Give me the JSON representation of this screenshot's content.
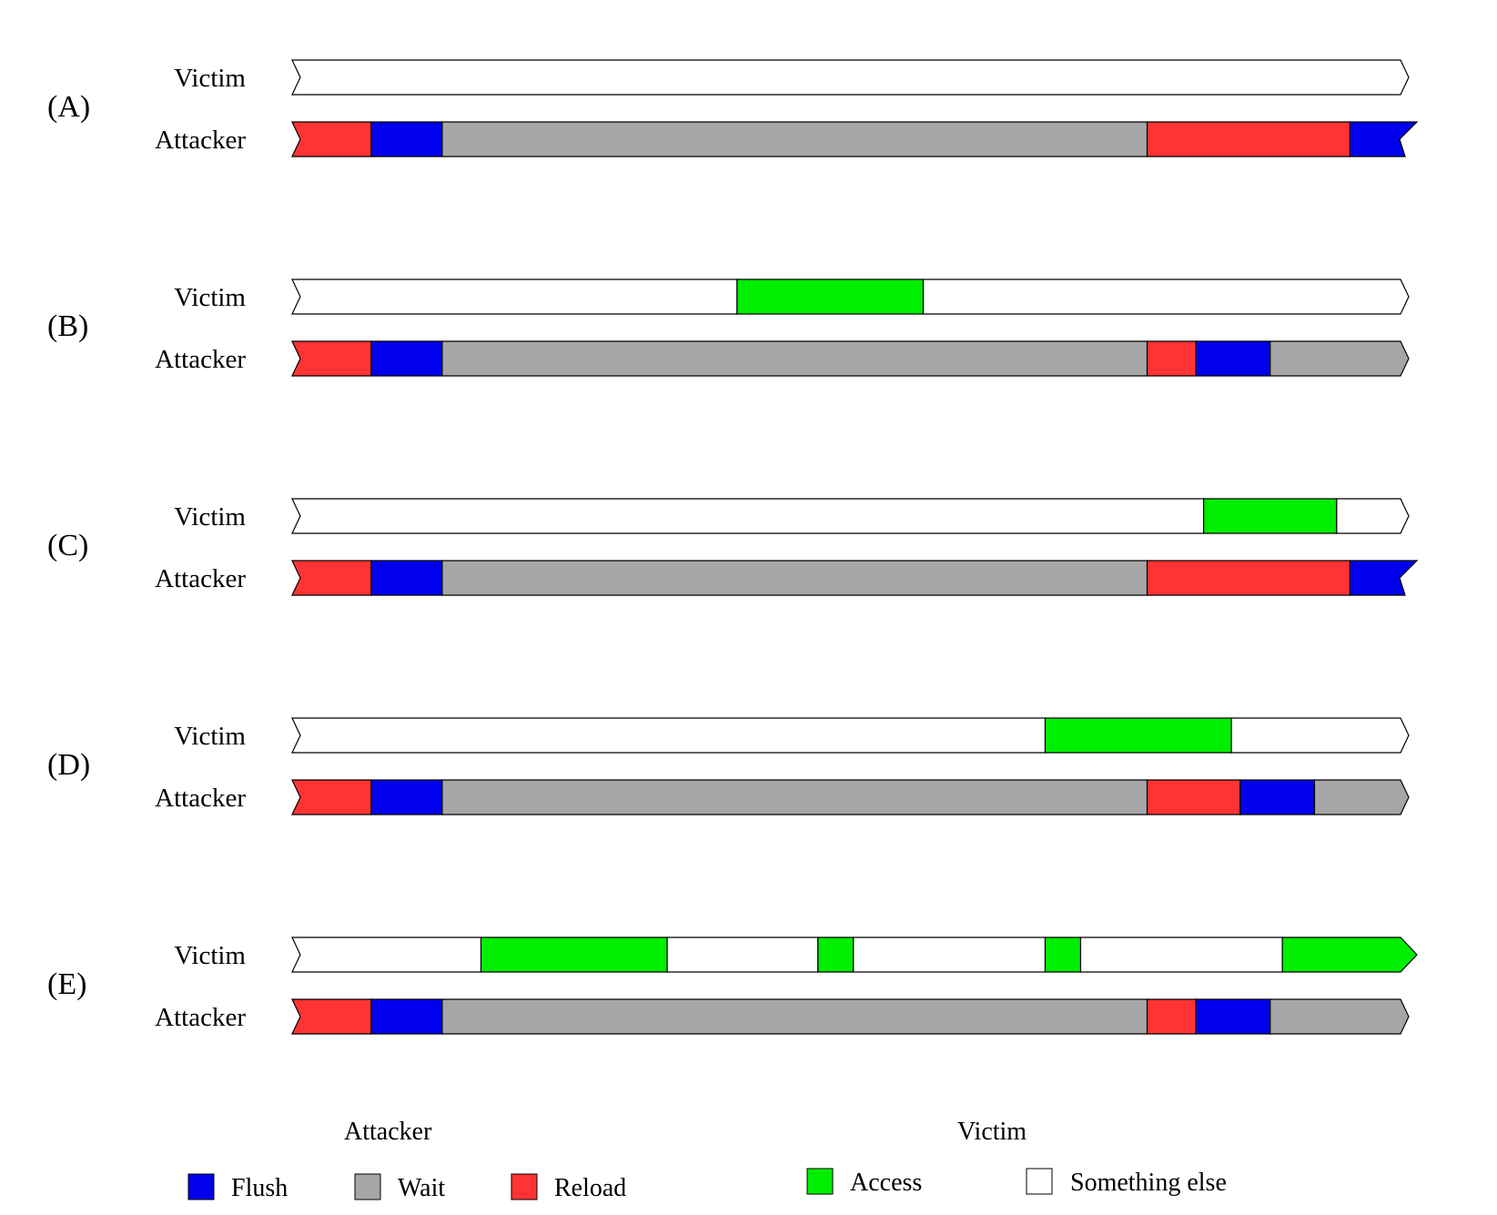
{
  "colors": {
    "flush": "#0000ee",
    "wait": "#a6a6a6",
    "reload": "#ff3333",
    "access": "#00ee00",
    "other": "#ffffff",
    "stroke": "#000000"
  },
  "scale": {
    "start": 0,
    "end": 100
  },
  "scenarios": [
    {
      "label": "(A)",
      "victim_label": "Victim",
      "attacker_label": "Attacker",
      "victim_end": "zigzag",
      "attacker_end": "notch",
      "victim": [
        {
          "type": "other",
          "start": 0,
          "end": 100
        }
      ],
      "attacker": [
        {
          "type": "reload",
          "start": 0,
          "end": 6.4
        },
        {
          "type": "flush",
          "start": 6.4,
          "end": 12.8
        },
        {
          "type": "wait",
          "start": 12.8,
          "end": 76.4
        },
        {
          "type": "reload",
          "start": 76.4,
          "end": 94.7
        },
        {
          "type": "flush",
          "start": 94.7,
          "end": 100
        }
      ]
    },
    {
      "label": "(B)",
      "victim_label": "Victim",
      "attacker_label": "Attacker",
      "victim_end": "zigzag",
      "attacker_end": "zigzag",
      "victim": [
        {
          "type": "other",
          "start": 0,
          "end": 39.4
        },
        {
          "type": "access",
          "start": 39.4,
          "end": 56.2
        },
        {
          "type": "other",
          "start": 56.2,
          "end": 100
        }
      ],
      "attacker": [
        {
          "type": "reload",
          "start": 0,
          "end": 6.4
        },
        {
          "type": "flush",
          "start": 6.4,
          "end": 12.8
        },
        {
          "type": "wait",
          "start": 12.8,
          "end": 76.4
        },
        {
          "type": "reload",
          "start": 76.4,
          "end": 80.8
        },
        {
          "type": "flush",
          "start": 80.8,
          "end": 87.5
        },
        {
          "type": "wait",
          "start": 87.5,
          "end": 100
        }
      ]
    },
    {
      "label": "(C)",
      "victim_label": "Victim",
      "attacker_label": "Attacker",
      "victim_end": "zigzag",
      "attacker_end": "notch",
      "victim": [
        {
          "type": "other",
          "start": 0,
          "end": 81.5
        },
        {
          "type": "access",
          "start": 81.5,
          "end": 93.5
        },
        {
          "type": "other",
          "start": 93.5,
          "end": 100
        }
      ],
      "attacker": [
        {
          "type": "reload",
          "start": 0,
          "end": 6.4
        },
        {
          "type": "flush",
          "start": 6.4,
          "end": 12.8
        },
        {
          "type": "wait",
          "start": 12.8,
          "end": 76.4
        },
        {
          "type": "reload",
          "start": 76.4,
          "end": 94.7
        },
        {
          "type": "flush",
          "start": 94.7,
          "end": 100
        }
      ]
    },
    {
      "label": "(D)",
      "victim_label": "Victim",
      "attacker_label": "Attacker",
      "victim_end": "zigzag",
      "attacker_end": "zigzag",
      "victim": [
        {
          "type": "other",
          "start": 0,
          "end": 67.2
        },
        {
          "type": "access",
          "start": 67.2,
          "end": 84.0
        },
        {
          "type": "other",
          "start": 84.0,
          "end": 100
        }
      ],
      "attacker": [
        {
          "type": "reload",
          "start": 0,
          "end": 6.4
        },
        {
          "type": "flush",
          "start": 6.4,
          "end": 12.8
        },
        {
          "type": "wait",
          "start": 12.8,
          "end": 76.4
        },
        {
          "type": "reload",
          "start": 76.4,
          "end": 84.8
        },
        {
          "type": "flush",
          "start": 84.8,
          "end": 91.5
        },
        {
          "type": "wait",
          "start": 91.5,
          "end": 100
        }
      ]
    },
    {
      "label": "(E)",
      "victim_label": "Victim",
      "attacker_label": "Attacker",
      "victim_end": "arrow",
      "attacker_end": "zigzag",
      "victim": [
        {
          "type": "other",
          "start": 0,
          "end": 16.3
        },
        {
          "type": "access",
          "start": 16.3,
          "end": 33.1
        },
        {
          "type": "other",
          "start": 33.1,
          "end": 46.7
        },
        {
          "type": "access",
          "start": 46.7,
          "end": 49.9
        },
        {
          "type": "other",
          "start": 49.9,
          "end": 67.2
        },
        {
          "type": "access",
          "start": 67.2,
          "end": 70.4
        },
        {
          "type": "other",
          "start": 70.4,
          "end": 88.6
        },
        {
          "type": "access",
          "start": 88.6,
          "end": 100
        }
      ],
      "attacker": [
        {
          "type": "reload",
          "start": 0,
          "end": 6.4
        },
        {
          "type": "flush",
          "start": 6.4,
          "end": 12.8
        },
        {
          "type": "wait",
          "start": 12.8,
          "end": 76.4
        },
        {
          "type": "reload",
          "start": 76.4,
          "end": 80.8
        },
        {
          "type": "flush",
          "start": 80.8,
          "end": 87.5
        },
        {
          "type": "wait",
          "start": 87.5,
          "end": 100
        }
      ]
    }
  ],
  "legend": {
    "attacker_heading": "Attacker",
    "victim_heading": "Victim",
    "items": [
      {
        "key": "flush",
        "label": "Flush"
      },
      {
        "key": "wait",
        "label": "Wait"
      },
      {
        "key": "reload",
        "label": "Reload"
      },
      {
        "key": "access",
        "label": "Access"
      },
      {
        "key": "other",
        "label": "Something else"
      }
    ]
  }
}
